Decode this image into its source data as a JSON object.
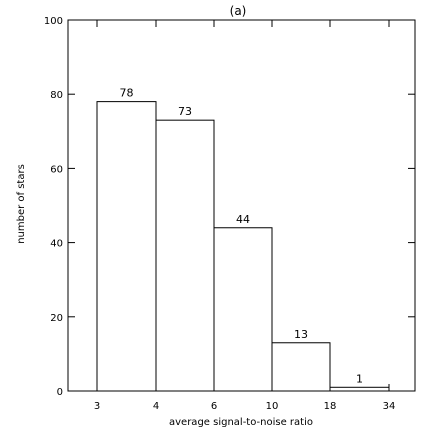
{
  "chart_data": {
    "type": "bar",
    "title": "(a)",
    "xlabel": "average signal-to-noise ratio",
    "ylabel": "number of stars",
    "categories": [
      "3–4",
      "4–6",
      "6–10",
      "10–18",
      "18–34"
    ],
    "bin_edges": [
      "3",
      "4",
      "6",
      "10",
      "18",
      "34"
    ],
    "values": [
      78,
      73,
      44,
      13,
      1
    ],
    "ylim": [
      0,
      100
    ],
    "yticks": [
      "0",
      "20",
      "40",
      "60",
      "80",
      "100"
    ],
    "grid": false,
    "legend": "none",
    "colors": {
      "bar_fill": "#ffffff",
      "bar_stroke": "#000000",
      "axis": "#000000",
      "text": "#000000"
    }
  }
}
